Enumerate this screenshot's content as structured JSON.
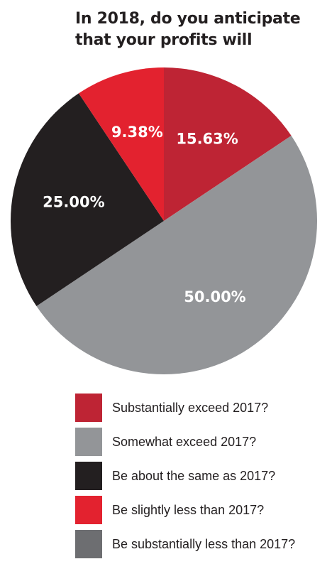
{
  "title_lines": [
    "In 2018, do you anticipate",
    "that your profits will"
  ],
  "chart_data": {
    "type": "pie",
    "title": "In 2018, do you anticipate that your profits will",
    "slices": [
      {
        "label": "Substantially exceed 2017?",
        "value": 15.63,
        "value_label": "15.63%",
        "color": "#be2434"
      },
      {
        "label": "Somewhat exceed 2017?",
        "value": 50.0,
        "value_label": "50.00%",
        "color": "#939598"
      },
      {
        "label": "Be about the same as 2017?",
        "value": 25.0,
        "value_label": "25.00%",
        "color": "#231f20"
      },
      {
        "label": "Be slightly less than 2017?",
        "value": 9.38,
        "value_label": "9.38%",
        "color": "#e3222f"
      },
      {
        "label": "Be substantially less than 2017?",
        "value": 0,
        "value_label": "",
        "color": "#6d6e71"
      }
    ],
    "legend_position": "bottom"
  }
}
